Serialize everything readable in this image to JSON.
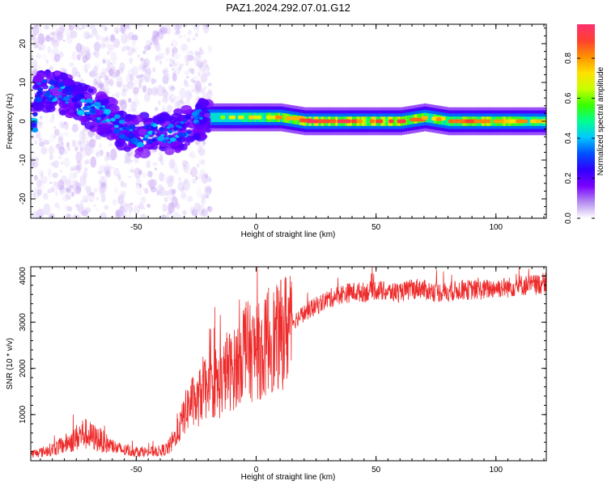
{
  "page_title": "PAZ1.2024.292.07.01.G12",
  "chart_data": [
    {
      "type": "heatmap",
      "xlabel": "Height of straight line (km)",
      "ylabel": "Frequency (Hz)",
      "xlim": [
        -94,
        121
      ],
      "ylim": [
        -25,
        25
      ],
      "xticks": [
        -50,
        0,
        50,
        100
      ],
      "yticks": [
        -20,
        -10,
        0,
        10,
        20
      ],
      "grid": false,
      "colorbar": {
        "label": "Normalized spectral amplitude",
        "range": [
          0.0,
          0.97
        ],
        "ticks": [
          "0.0",
          "0.2",
          "0.4",
          "0.6",
          "0.8"
        ],
        "colormap": [
          "#ffffff",
          "#b48cf0",
          "#7a00ff",
          "#3000ff",
          "#0050ff",
          "#00c8ff",
          "#00ff90",
          "#38ff00",
          "#c8ff00",
          "#ffe000",
          "#ff9000",
          "#ff4030",
          "#ff3070"
        ]
      },
      "ridge": [
        {
          "x": -92,
          "f": 8,
          "amp": 0.15
        },
        {
          "x": -85,
          "f": 8,
          "amp": 0.3
        },
        {
          "x": -80,
          "f": 7,
          "amp": 0.35
        },
        {
          "x": -75,
          "f": 5,
          "amp": 0.3
        },
        {
          "x": -70,
          "f": 4,
          "amp": 0.3
        },
        {
          "x": -65,
          "f": 2,
          "amp": 0.25
        },
        {
          "x": -60,
          "f": 0,
          "amp": 0.2
        },
        {
          "x": -55,
          "f": -2,
          "amp": 0.25
        },
        {
          "x": -50,
          "f": -4,
          "amp": 0.3
        },
        {
          "x": -45,
          "f": -3,
          "amp": 0.25
        },
        {
          "x": -40,
          "f": -3,
          "amp": 0.3
        },
        {
          "x": -35,
          "f": -3,
          "amp": 0.3
        },
        {
          "x": -30,
          "f": -2,
          "amp": 0.3
        },
        {
          "x": -25,
          "f": 1,
          "amp": 0.35
        },
        {
          "x": -20,
          "f": 1,
          "amp": 0.45
        },
        {
          "x": -10,
          "f": 1,
          "amp": 0.6
        },
        {
          "x": 0,
          "f": 1,
          "amp": 0.65
        },
        {
          "x": 10,
          "f": 1,
          "amp": 0.75
        },
        {
          "x": 20,
          "f": 0,
          "amp": 0.85
        },
        {
          "x": 30,
          "f": 0,
          "amp": 0.85
        },
        {
          "x": 40,
          "f": 0,
          "amp": 0.8
        },
        {
          "x": 50,
          "f": 0,
          "amp": 0.85
        },
        {
          "x": 60,
          "f": 0,
          "amp": 0.9
        },
        {
          "x": 70,
          "f": 1,
          "amp": 0.7
        },
        {
          "x": 80,
          "f": 0,
          "amp": 0.75
        },
        {
          "x": 90,
          "f": 0,
          "amp": 0.8
        },
        {
          "x": 100,
          "f": 0,
          "amp": 0.8
        },
        {
          "x": 110,
          "f": 0,
          "amp": 0.7
        },
        {
          "x": 121,
          "f": 0,
          "amp": 0.6
        }
      ]
    },
    {
      "type": "line",
      "xlabel": "Height of straight line (km)",
      "ylabel": "SNR (10 * v/v)",
      "xlim": [
        -94,
        121
      ],
      "ylim": [
        0,
        4200
      ],
      "xticks": [
        -50,
        0,
        50,
        100
      ],
      "yticks": [
        1000,
        2000,
        3000,
        4000
      ],
      "grid": false,
      "color": "#ee2b2b",
      "series": [
        {
          "x": [
            -94,
            -90,
            -85,
            -80,
            -75,
            -72,
            -70,
            -65,
            -60,
            -55,
            -50,
            -45,
            -40,
            -37,
            -35,
            -32,
            -30,
            -27,
            -25,
            -22,
            -20,
            -17,
            -15,
            -12,
            -10,
            -7,
            -5,
            -2,
            0,
            3,
            5,
            8,
            10,
            13,
            15,
            20,
            25,
            30,
            35,
            40,
            45,
            50,
            55,
            60,
            65,
            68,
            70,
            75,
            80,
            85,
            90,
            95,
            100,
            105,
            110,
            115,
            121
          ],
          "y": [
            150,
            180,
            250,
            350,
            500,
            600,
            550,
            450,
            300,
            220,
            200,
            190,
            210,
            260,
            400,
            700,
            1000,
            1300,
            1200,
            1600,
            1400,
            1700,
            1600,
            2000,
            1900,
            2200,
            2500,
            2300,
            2400,
            2300,
            2700,
            2600,
            2700,
            2900,
            3000,
            3200,
            3350,
            3500,
            3600,
            3650,
            3650,
            3700,
            3650,
            3650,
            3700,
            3750,
            3700,
            3650,
            3650,
            3700,
            3700,
            3700,
            3750,
            3750,
            3800,
            3800,
            3850
          ]
        }
      ]
    }
  ]
}
